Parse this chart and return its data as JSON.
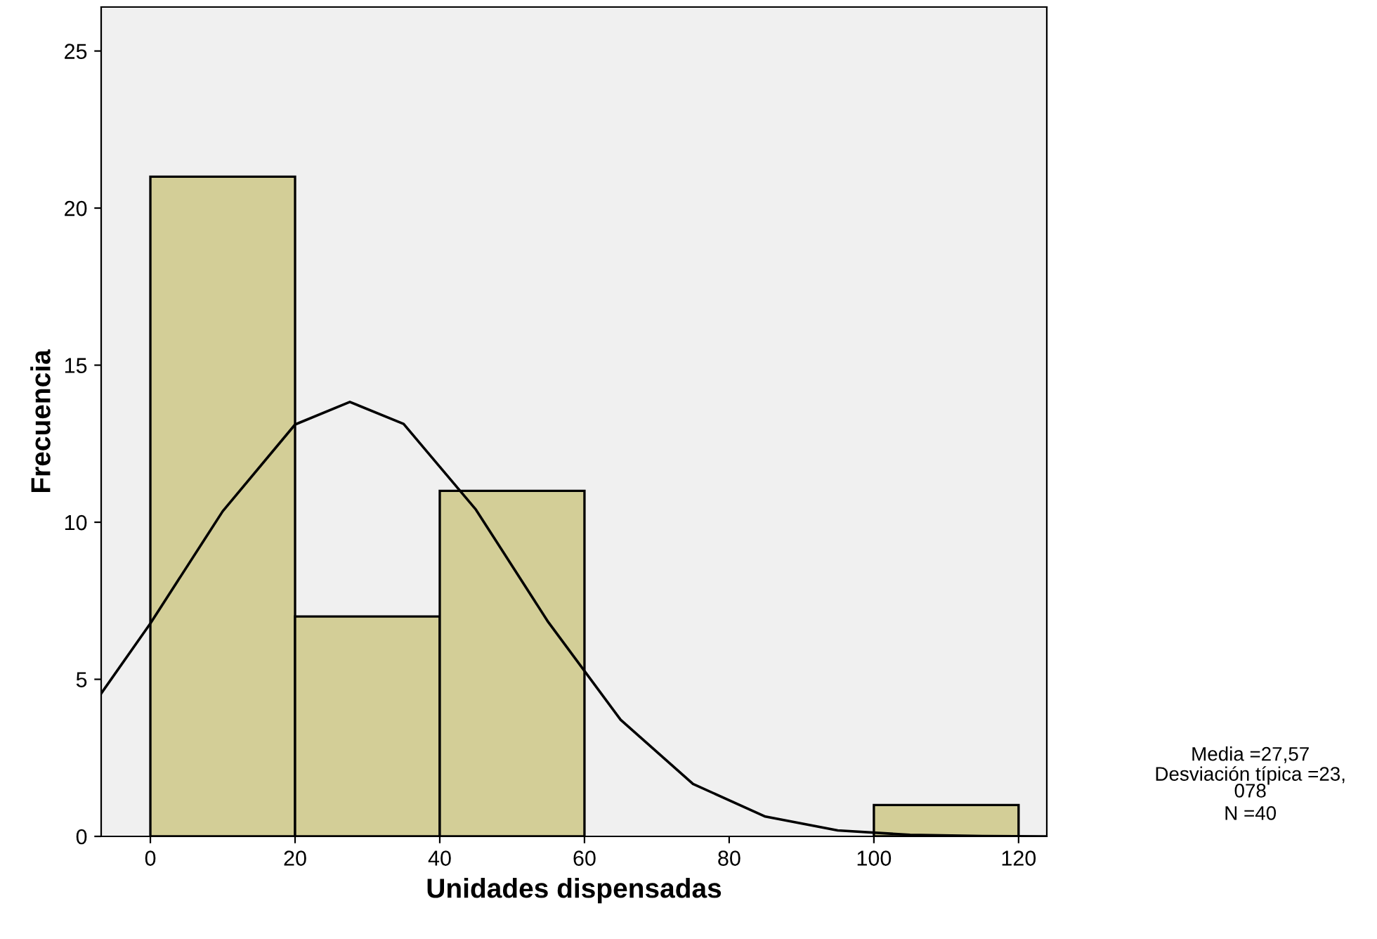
{
  "chart_data": {
    "type": "histogram",
    "xlabel": "Unidades dispensadas",
    "ylabel": "Frecuencia",
    "xlim": [
      -6.8,
      123.9
    ],
    "ylim": [
      0,
      26.4
    ],
    "xticks": [
      0,
      20,
      40,
      60,
      80,
      100,
      120
    ],
    "yticks": [
      0,
      5,
      10,
      15,
      20,
      25
    ],
    "grid": false,
    "legend": false,
    "series": [
      {
        "bins": [
          0,
          20,
          40,
          60,
          80,
          100,
          120
        ],
        "values": [
          21,
          7,
          11,
          0,
          0,
          1
        ],
        "color": "#d3ce97"
      },
      {
        "type": "line",
        "x": [
          -6.8,
          0,
          10,
          20,
          27.57,
          35,
          45,
          55,
          65,
          75,
          85,
          95,
          105,
          115,
          123.9
        ],
        "values": [
          4.55,
          6.78,
          10.35,
          13.11,
          13.83,
          13.13,
          10.4,
          6.82,
          3.71,
          1.67,
          0.63,
          0.19,
          0.05,
          0.01,
          0.0
        ],
        "color": "#000000"
      }
    ],
    "annotations": [
      "Media =27,57",
      "Desviación típica =23,\n078",
      "N =40"
    ]
  }
}
